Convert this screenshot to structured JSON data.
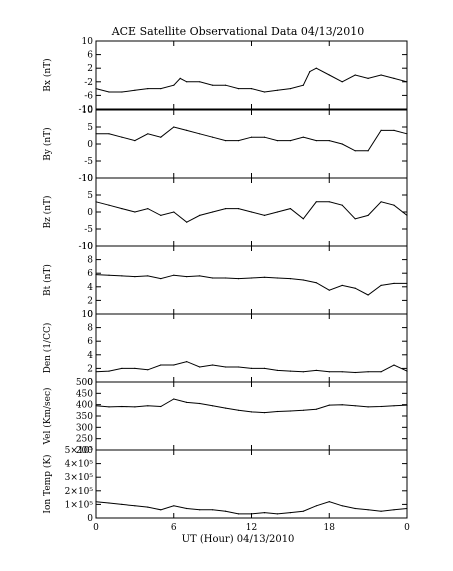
{
  "title": "ACE Satellite Observational Data  04/13/2010",
  "xlabel": "UT (Hour)  04/13/2010",
  "x_tick_labels": [
    "0",
    "6",
    "12",
    "18",
    "0"
  ],
  "colors": {
    "line": "#000000",
    "background": "#ffffff"
  },
  "chart_data": [
    {
      "type": "line",
      "ylabel": "Bx (nT)",
      "ylim": [
        -10,
        10
      ],
      "y_ticks": [
        10,
        6,
        2,
        -2,
        -6,
        -10
      ],
      "y_tick_labels": [
        "10",
        "6",
        "2",
        "-2",
        "-6",
        "-10"
      ],
      "x": [
        0,
        1,
        2,
        3,
        4,
        5,
        6,
        6.5,
        7,
        8,
        9,
        10,
        11,
        12,
        13,
        14,
        15,
        16,
        16.5,
        17,
        18,
        19,
        20,
        21,
        22,
        23,
        24
      ],
      "values": [
        -4,
        -5,
        -5,
        -4.5,
        -4,
        -4,
        -3,
        -1,
        -2,
        -2,
        -3,
        -3,
        -4,
        -4,
        -5,
        -4.5,
        -4,
        -3,
        1,
        2,
        0,
        -2,
        0,
        -1,
        0,
        -1,
        -2
      ]
    },
    {
      "type": "line",
      "ylabel": "By (nT)",
      "ylim": [
        -10,
        10
      ],
      "y_ticks": [
        10,
        5,
        0,
        -5,
        -10
      ],
      "y_tick_labels": [
        "10",
        "5",
        "0",
        "-5",
        "-10"
      ],
      "x": [
        0,
        1,
        2,
        3,
        4,
        5,
        6,
        7,
        8,
        9,
        10,
        11,
        12,
        13,
        14,
        15,
        16,
        17,
        18,
        19,
        20,
        21,
        22,
        23,
        24
      ],
      "values": [
        3,
        3,
        2,
        1,
        3,
        2,
        5,
        4,
        3,
        2,
        1,
        1,
        2,
        2,
        1,
        1,
        2,
        1,
        1,
        0,
        -2,
        -2,
        4,
        4,
        3
      ]
    },
    {
      "type": "line",
      "ylabel": "Bz (nT)",
      "ylim": [
        -10,
        10
      ],
      "y_ticks": [
        10,
        5,
        0,
        -5,
        -10
      ],
      "y_tick_labels": [
        "10",
        "5",
        "0",
        "-5",
        "-10"
      ],
      "x": [
        0,
        1,
        2,
        3,
        4,
        5,
        6,
        7,
        8,
        9,
        10,
        11,
        12,
        13,
        14,
        15,
        16,
        17,
        18,
        19,
        20,
        21,
        22,
        23,
        24
      ],
      "values": [
        3,
        2,
        1,
        0,
        1,
        -1,
        0,
        -3,
        -1,
        0,
        1,
        1,
        0,
        -1,
        0,
        1,
        -2,
        3,
        3,
        2,
        -2,
        -1,
        3,
        2,
        -1
      ]
    },
    {
      "type": "line",
      "ylabel": "Bt (nT)",
      "ylim": [
        0,
        10
      ],
      "y_ticks": [
        10,
        8,
        6,
        4,
        2,
        0
      ],
      "y_tick_labels": [
        "10",
        "8",
        "6",
        "4",
        "2",
        "0"
      ],
      "x": [
        0,
        1,
        2,
        3,
        4,
        5,
        6,
        7,
        8,
        9,
        10,
        11,
        12,
        13,
        14,
        15,
        16,
        17,
        18,
        19,
        20,
        21,
        22,
        23,
        24
      ],
      "values": [
        5.8,
        5.7,
        5.6,
        5.5,
        5.6,
        5.2,
        5.7,
        5.5,
        5.6,
        5.3,
        5.3,
        5.2,
        5.3,
        5.4,
        5.3,
        5.2,
        5,
        4.6,
        3.5,
        4.2,
        3.8,
        2.8,
        4.2,
        4.5,
        4.5
      ]
    },
    {
      "type": "line",
      "ylabel": "Den (1/CC)",
      "ylim": [
        0,
        10
      ],
      "y_ticks": [
        10,
        8,
        6,
        4,
        2,
        0
      ],
      "y_tick_labels": [
        "10",
        "8",
        "6",
        "4",
        "2",
        "0"
      ],
      "x": [
        0,
        1,
        2,
        3,
        4,
        5,
        6,
        7,
        8,
        9,
        10,
        11,
        12,
        13,
        14,
        15,
        16,
        17,
        18,
        19,
        20,
        21,
        22,
        23,
        24
      ],
      "values": [
        1.5,
        1.6,
        2,
        2,
        1.8,
        2.5,
        2.5,
        3,
        2.2,
        2.5,
        2.2,
        2.2,
        2,
        2,
        1.7,
        1.6,
        1.5,
        1.7,
        1.5,
        1.5,
        1.4,
        1.5,
        1.5,
        2.5,
        1.6
      ]
    },
    {
      "type": "line",
      "ylabel": "Vel (Km/sec)",
      "ylim": [
        200,
        500
      ],
      "y_ticks": [
        500,
        450,
        400,
        350,
        300,
        250,
        200
      ],
      "y_tick_labels": [
        "500",
        "450",
        "400",
        "350",
        "300",
        "250",
        "200"
      ],
      "x": [
        0,
        1,
        2,
        3,
        4,
        5,
        6,
        7,
        8,
        9,
        10,
        11,
        12,
        13,
        14,
        15,
        16,
        17,
        18,
        19,
        20,
        21,
        22,
        23,
        24
      ],
      "values": [
        395,
        390,
        392,
        390,
        395,
        392,
        425,
        410,
        405,
        395,
        385,
        375,
        368,
        365,
        370,
        372,
        375,
        380,
        398,
        400,
        395,
        390,
        392,
        395,
        398
      ]
    },
    {
      "type": "line",
      "ylabel": "Ion Temp (K)",
      "ylim": [
        0,
        500000
      ],
      "y_ticks": [
        500000,
        400000,
        300000,
        200000,
        100000,
        0
      ],
      "y_tick_labels": [
        "5×10⁵",
        "4×10⁵",
        "3×10⁵",
        "2×10⁵",
        "1×10⁵",
        "0"
      ],
      "x": [
        0,
        1,
        2,
        3,
        4,
        5,
        6,
        7,
        8,
        9,
        10,
        11,
        12,
        13,
        14,
        15,
        16,
        17,
        18,
        19,
        20,
        21,
        22,
        23,
        24
      ],
      "values": [
        120000,
        110000,
        100000,
        90000,
        80000,
        60000,
        90000,
        70000,
        60000,
        60000,
        50000,
        30000,
        30000,
        40000,
        30000,
        40000,
        50000,
        90000,
        120000,
        90000,
        70000,
        60000,
        50000,
        60000,
        70000
      ]
    }
  ]
}
